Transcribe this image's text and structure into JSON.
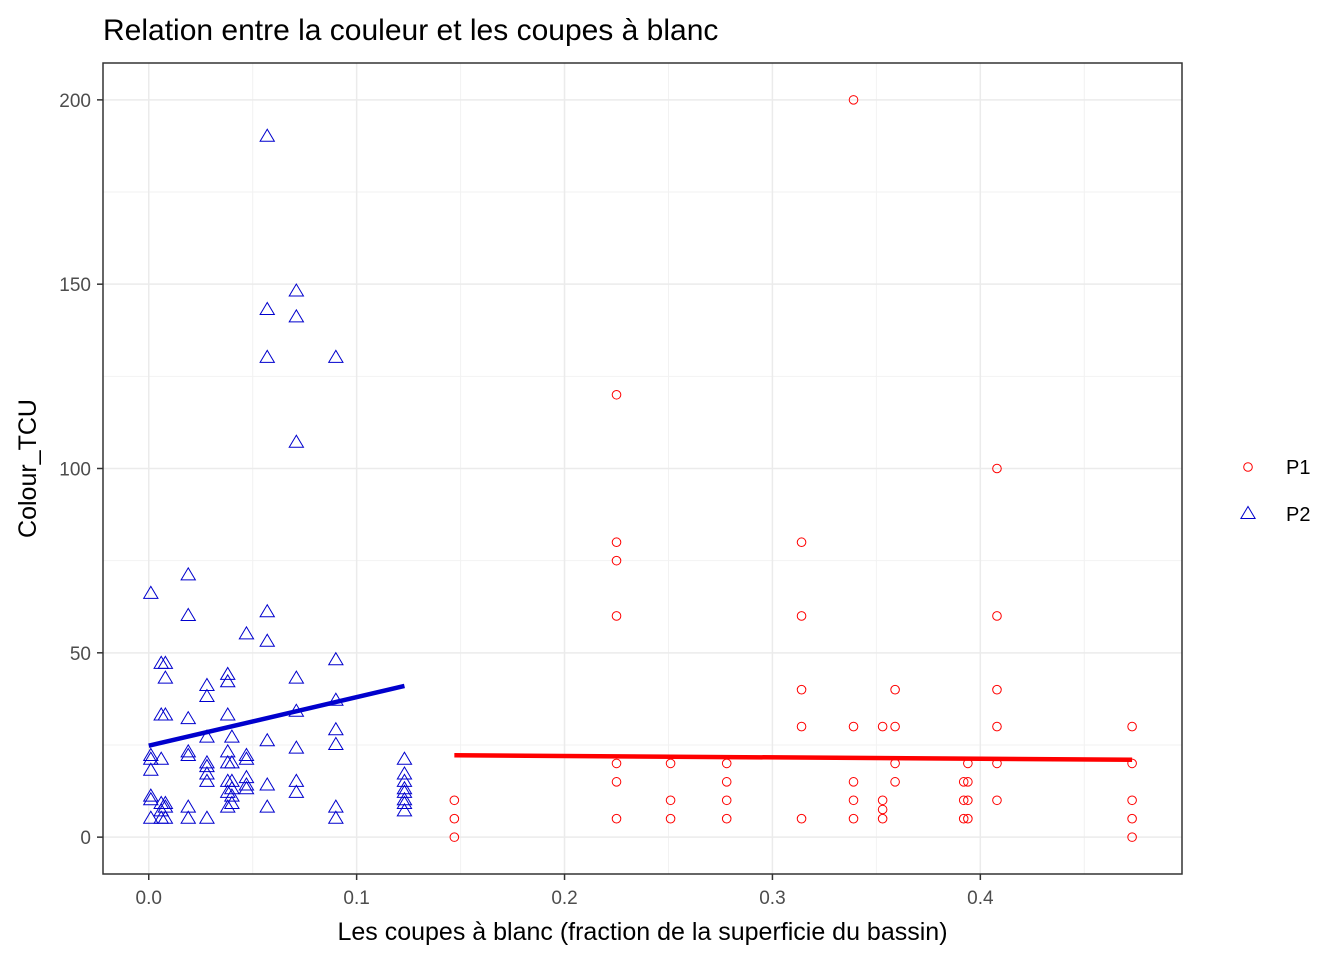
{
  "chart_data": {
    "type": "scatter",
    "title": "Relation entre la couleur et les coupes à blanc",
    "xlabel": "Les coupes à blanc (fraction de la superficie du bassin)",
    "ylabel": "Colour_TCU",
    "xlim": [
      -0.022,
      0.497
    ],
    "ylim": [
      -10,
      210
    ],
    "x_ticks": [
      0.0,
      0.1,
      0.2,
      0.3,
      0.4
    ],
    "x_tick_labels": [
      "0.0",
      "0.1",
      "0.2",
      "0.3",
      "0.4"
    ],
    "y_ticks": [
      0,
      50,
      100,
      150,
      200
    ],
    "y_tick_labels": [
      "0",
      "50",
      "100",
      "150",
      "200"
    ],
    "grid": true,
    "legend_position": "right",
    "series": [
      {
        "name": "P1",
        "color": "#ff0000",
        "marker": "circle",
        "points": [
          [
            0.147,
            10
          ],
          [
            0.147,
            5
          ],
          [
            0.147,
            0
          ],
          [
            0.225,
            120
          ],
          [
            0.225,
            80
          ],
          [
            0.225,
            75
          ],
          [
            0.225,
            60
          ],
          [
            0.225,
            20
          ],
          [
            0.225,
            15
          ],
          [
            0.225,
            5
          ],
          [
            0.251,
            20
          ],
          [
            0.251,
            10
          ],
          [
            0.251,
            5
          ],
          [
            0.278,
            20
          ],
          [
            0.278,
            15
          ],
          [
            0.278,
            10
          ],
          [
            0.278,
            5
          ],
          [
            0.314,
            80
          ],
          [
            0.314,
            60
          ],
          [
            0.314,
            40
          ],
          [
            0.314,
            30
          ],
          [
            0.314,
            5
          ],
          [
            0.339,
            200
          ],
          [
            0.339,
            30
          ],
          [
            0.339,
            15
          ],
          [
            0.339,
            10
          ],
          [
            0.339,
            5
          ],
          [
            0.353,
            30
          ],
          [
            0.353,
            10
          ],
          [
            0.353,
            7.5
          ],
          [
            0.353,
            5
          ],
          [
            0.359,
            40
          ],
          [
            0.359,
            30
          ],
          [
            0.359,
            20
          ],
          [
            0.359,
            15
          ],
          [
            0.392,
            15
          ],
          [
            0.392,
            10
          ],
          [
            0.392,
            5
          ],
          [
            0.394,
            20
          ],
          [
            0.394,
            15
          ],
          [
            0.394,
            10
          ],
          [
            0.394,
            5
          ],
          [
            0.408,
            100
          ],
          [
            0.408,
            60
          ],
          [
            0.408,
            40
          ],
          [
            0.408,
            30
          ],
          [
            0.408,
            20
          ],
          [
            0.408,
            10
          ],
          [
            0.473,
            30
          ],
          [
            0.473,
            20
          ],
          [
            0.473,
            10
          ],
          [
            0.473,
            5
          ],
          [
            0.473,
            0
          ]
        ],
        "trend": {
          "x": [
            0.147,
            0.473
          ],
          "y": [
            22.2,
            21.0
          ]
        }
      },
      {
        "name": "P2",
        "color": "#0000cd",
        "marker": "triangle",
        "points": [
          [
            0.001,
            66
          ],
          [
            0.001,
            22
          ],
          [
            0.001,
            21
          ],
          [
            0.001,
            18
          ],
          [
            0.001,
            11
          ],
          [
            0.001,
            10
          ],
          [
            0.001,
            5
          ],
          [
            0.006,
            47
          ],
          [
            0.006,
            33
          ],
          [
            0.006,
            21
          ],
          [
            0.006,
            9
          ],
          [
            0.006,
            7
          ],
          [
            0.006,
            5
          ],
          [
            0.008,
            47
          ],
          [
            0.008,
            43
          ],
          [
            0.008,
            33
          ],
          [
            0.008,
            9
          ],
          [
            0.008,
            8
          ],
          [
            0.008,
            5
          ],
          [
            0.019,
            71
          ],
          [
            0.019,
            60
          ],
          [
            0.019,
            32
          ],
          [
            0.019,
            23
          ],
          [
            0.019,
            22
          ],
          [
            0.019,
            8
          ],
          [
            0.019,
            5
          ],
          [
            0.028,
            41
          ],
          [
            0.028,
            38
          ],
          [
            0.028,
            27
          ],
          [
            0.028,
            20
          ],
          [
            0.028,
            19
          ],
          [
            0.028,
            17
          ],
          [
            0.028,
            15
          ],
          [
            0.028,
            5
          ],
          [
            0.038,
            44
          ],
          [
            0.038,
            42
          ],
          [
            0.038,
            33
          ],
          [
            0.038,
            23
          ],
          [
            0.038,
            20
          ],
          [
            0.038,
            15
          ],
          [
            0.038,
            12
          ],
          [
            0.038,
            8
          ],
          [
            0.04,
            27
          ],
          [
            0.04,
            20
          ],
          [
            0.04,
            15
          ],
          [
            0.04,
            13
          ],
          [
            0.04,
            11
          ],
          [
            0.04,
            9
          ],
          [
            0.047,
            55
          ],
          [
            0.047,
            22
          ],
          [
            0.047,
            21
          ],
          [
            0.047,
            16
          ],
          [
            0.047,
            14
          ],
          [
            0.047,
            13
          ],
          [
            0.057,
            190
          ],
          [
            0.057,
            143
          ],
          [
            0.057,
            130
          ],
          [
            0.057,
            61
          ],
          [
            0.057,
            53
          ],
          [
            0.057,
            26
          ],
          [
            0.057,
            14
          ],
          [
            0.057,
            8
          ],
          [
            0.071,
            148
          ],
          [
            0.071,
            141
          ],
          [
            0.071,
            107
          ],
          [
            0.071,
            43
          ],
          [
            0.071,
            34
          ],
          [
            0.071,
            24
          ],
          [
            0.071,
            15
          ],
          [
            0.071,
            12
          ],
          [
            0.09,
            130
          ],
          [
            0.09,
            48
          ],
          [
            0.09,
            37
          ],
          [
            0.09,
            29
          ],
          [
            0.09,
            25
          ],
          [
            0.09,
            8
          ],
          [
            0.09,
            5
          ],
          [
            0.123,
            21
          ],
          [
            0.123,
            17
          ],
          [
            0.123,
            15
          ],
          [
            0.123,
            13
          ],
          [
            0.123,
            12
          ],
          [
            0.123,
            10
          ],
          [
            0.123,
            9
          ],
          [
            0.123,
            7
          ]
        ],
        "trend": {
          "x": [
            0.0,
            0.123
          ],
          "y": [
            24.8,
            41.0
          ]
        }
      }
    ]
  }
}
